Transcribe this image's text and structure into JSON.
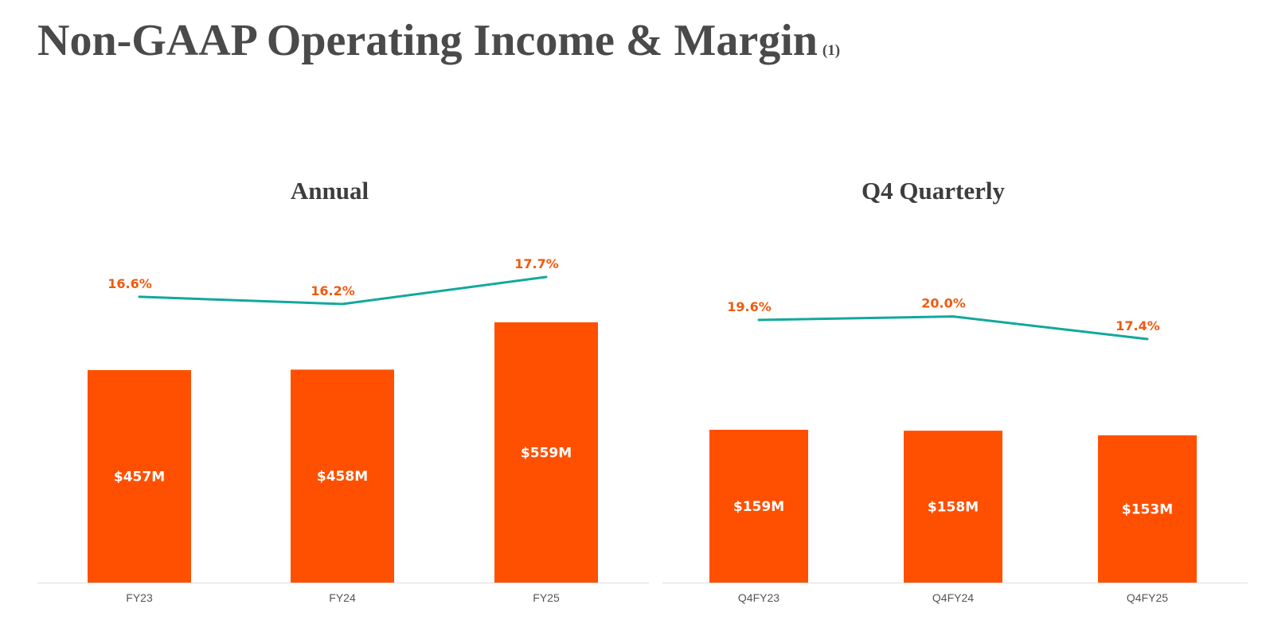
{
  "page": {
    "title": "Non-GAAP Operating Income & Margin",
    "note": "(1)"
  },
  "colors": {
    "bar": "#fe5000",
    "line": "#12a89d",
    "pct_label": "#f05a0e",
    "baseline": "#dddddd"
  },
  "chart_data": [
    {
      "type": "bar",
      "title": "Annual",
      "categories": [
        "FY23",
        "FY24",
        "FY25"
      ],
      "series": [
        {
          "type": "bar",
          "axis": "left",
          "values": [
            457,
            458,
            559
          ],
          "labels": [
            "$457M",
            "$458M",
            "$559M"
          ]
        },
        {
          "type": "line",
          "axis": "right",
          "values": [
            16.6,
            16.2,
            17.7
          ],
          "labels": [
            "16.6%",
            "16.2%",
            "17.7%"
          ]
        }
      ],
      "xlabel": "",
      "ylabel": "",
      "grid": false,
      "legend": "none"
    },
    {
      "type": "bar",
      "title": "Q4 Quarterly",
      "categories": [
        "Q4FY23",
        "Q4FY24",
        "Q4FY25"
      ],
      "series": [
        {
          "type": "bar",
          "axis": "left",
          "values": [
            159,
            158,
            153
          ],
          "labels": [
            "$159M",
            "$158M",
            "$153M"
          ]
        },
        {
          "type": "line",
          "axis": "right",
          "values": [
            19.6,
            20.0,
            17.4
          ],
          "labels": [
            "19.6%",
            "20.0%",
            "17.4%"
          ]
        }
      ],
      "xlabel": "",
      "ylabel": "",
      "grid": false,
      "legend": "none"
    }
  ]
}
